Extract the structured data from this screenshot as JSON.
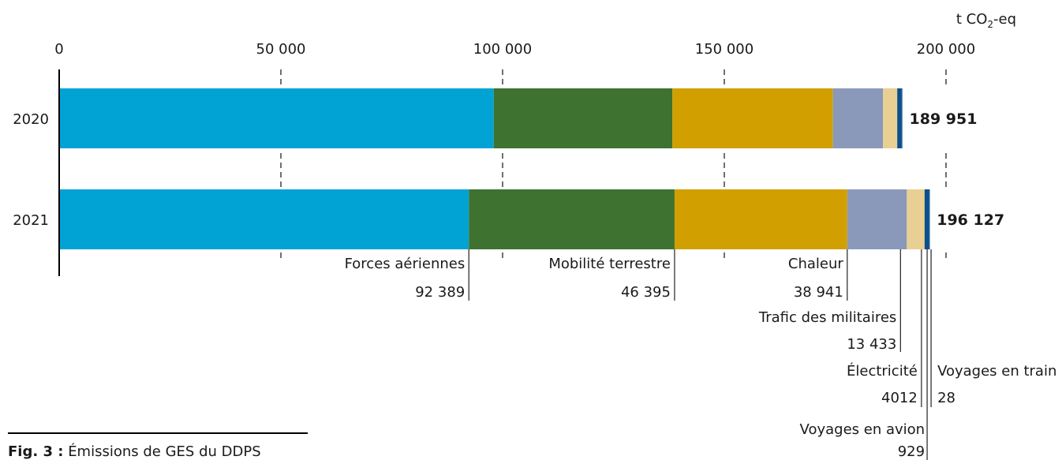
{
  "chart_data": {
    "type": "bar",
    "orientation": "horizontal",
    "stacked": true,
    "unit_label": {
      "prefix": "t CO",
      "subscript": "2",
      "suffix": "-eq"
    },
    "xlim": [
      0,
      200000
    ],
    "x_ticks": [
      {
        "value": 0,
        "label": "0"
      },
      {
        "value": 50000,
        "label": "50 000"
      },
      {
        "value": 100000,
        "label": "100 000"
      },
      {
        "value": 150000,
        "label": "150 000"
      },
      {
        "value": 200000,
        "label": "200 000"
      }
    ],
    "categories": [
      "2020",
      "2021"
    ],
    "totals": [
      189951,
      196127
    ],
    "total_labels": [
      "189 951",
      "196 127"
    ],
    "series": [
      {
        "name": "Forces aériennes",
        "color": "#00a3d4",
        "values": [
          98000,
          92389
        ],
        "label_2021": "92 389"
      },
      {
        "name": "Mobilité terrestre",
        "color": "#3e7230",
        "values": [
          40300,
          46395
        ],
        "label_2021": "46 395"
      },
      {
        "name": "Chaleur",
        "color": "#d19f00",
        "values": [
          36200,
          38941
        ],
        "label_2021": "38 941"
      },
      {
        "name": "Trafic des militaires",
        "color": "#8a99ba",
        "values": [
          11300,
          13433
        ],
        "label_2021": "13 433"
      },
      {
        "name": "Électricité",
        "color": "#e8cf93",
        "values": [
          3200,
          4012
        ],
        "label_2021": "4012"
      },
      {
        "name": "Voyages en avion",
        "color": "#0b4f8a",
        "values": [
          900,
          929
        ],
        "label_2021": "929"
      },
      {
        "name": "Voyages en train",
        "color": "#0b4f8a",
        "values": [
          51,
          28
        ],
        "label_2021": "28"
      }
    ]
  },
  "caption": {
    "label": "Fig. 3 :",
    "text": "Émissions de GES du DDPS"
  }
}
